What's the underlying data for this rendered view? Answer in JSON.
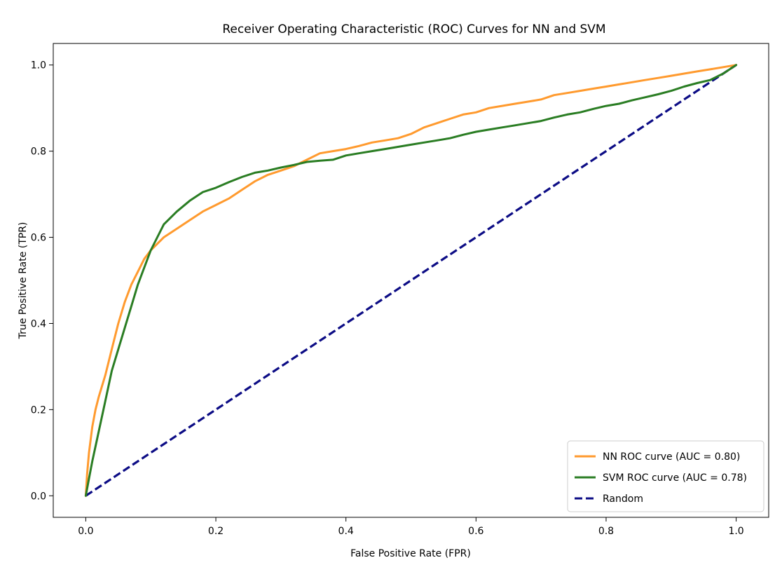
{
  "chart_data": {
    "type": "line",
    "title": "Receiver Operating Characteristic (ROC) Curves for NN and SVM",
    "xlabel": "False Positive Rate (FPR)",
    "ylabel": "True Positive Rate (TPR)",
    "xlim": [
      -0.05,
      1.05
    ],
    "ylim": [
      -0.05,
      1.05
    ],
    "xticks": [
      0.0,
      0.2,
      0.4,
      0.6,
      0.8,
      1.0
    ],
    "yticks": [
      0.0,
      0.2,
      0.4,
      0.6,
      0.8,
      1.0
    ],
    "xtick_labels": [
      "0.0",
      "0.2",
      "0.4",
      "0.6",
      "0.8",
      "1.0"
    ],
    "ytick_labels": [
      "0.0",
      "0.2",
      "0.4",
      "0.6",
      "0.8",
      "1.0"
    ],
    "grid": false,
    "legend_position": "bottom-right",
    "series": [
      {
        "name": "NN ROC curve (AUC = 0.80)",
        "color": "#ff9a2e",
        "style": "solid",
        "x": [
          0.0,
          0.002,
          0.005,
          0.01,
          0.015,
          0.02,
          0.03,
          0.04,
          0.05,
          0.06,
          0.07,
          0.08,
          0.09,
          0.1,
          0.12,
          0.14,
          0.16,
          0.18,
          0.2,
          0.22,
          0.24,
          0.26,
          0.28,
          0.3,
          0.32,
          0.34,
          0.36,
          0.38,
          0.4,
          0.42,
          0.44,
          0.46,
          0.48,
          0.5,
          0.52,
          0.54,
          0.56,
          0.58,
          0.6,
          0.62,
          0.64,
          0.66,
          0.68,
          0.7,
          0.72,
          0.74,
          0.76,
          0.78,
          0.8,
          0.82,
          0.84,
          0.86,
          0.88,
          0.9,
          0.92,
          0.94,
          0.96,
          0.98,
          1.0
        ],
        "y": [
          0.0,
          0.05,
          0.1,
          0.16,
          0.2,
          0.23,
          0.28,
          0.34,
          0.4,
          0.45,
          0.49,
          0.52,
          0.55,
          0.57,
          0.6,
          0.62,
          0.64,
          0.66,
          0.675,
          0.69,
          0.71,
          0.73,
          0.745,
          0.755,
          0.765,
          0.78,
          0.795,
          0.8,
          0.805,
          0.812,
          0.82,
          0.825,
          0.83,
          0.84,
          0.855,
          0.865,
          0.875,
          0.885,
          0.89,
          0.9,
          0.905,
          0.91,
          0.915,
          0.92,
          0.93,
          0.935,
          0.94,
          0.945,
          0.95,
          0.955,
          0.96,
          0.965,
          0.97,
          0.975,
          0.98,
          0.985,
          0.99,
          0.995,
          1.0
        ]
      },
      {
        "name": "SVM ROC curve (AUC = 0.78)",
        "color": "#2a7d23",
        "style": "solid",
        "x": [
          0.0,
          0.005,
          0.01,
          0.02,
          0.03,
          0.04,
          0.05,
          0.06,
          0.07,
          0.08,
          0.09,
          0.1,
          0.11,
          0.12,
          0.14,
          0.16,
          0.18,
          0.2,
          0.22,
          0.24,
          0.26,
          0.28,
          0.3,
          0.32,
          0.34,
          0.36,
          0.38,
          0.4,
          0.42,
          0.44,
          0.46,
          0.48,
          0.5,
          0.52,
          0.54,
          0.56,
          0.58,
          0.6,
          0.62,
          0.64,
          0.66,
          0.68,
          0.7,
          0.72,
          0.74,
          0.76,
          0.78,
          0.8,
          0.82,
          0.84,
          0.86,
          0.88,
          0.9,
          0.92,
          0.94,
          0.96,
          0.98,
          1.0
        ],
        "y": [
          0.0,
          0.04,
          0.08,
          0.15,
          0.22,
          0.29,
          0.34,
          0.39,
          0.44,
          0.49,
          0.53,
          0.57,
          0.6,
          0.63,
          0.66,
          0.685,
          0.705,
          0.715,
          0.728,
          0.74,
          0.75,
          0.755,
          0.762,
          0.768,
          0.775,
          0.778,
          0.78,
          0.79,
          0.795,
          0.8,
          0.805,
          0.81,
          0.815,
          0.82,
          0.825,
          0.83,
          0.838,
          0.845,
          0.85,
          0.855,
          0.86,
          0.865,
          0.87,
          0.878,
          0.885,
          0.89,
          0.898,
          0.905,
          0.91,
          0.918,
          0.925,
          0.932,
          0.94,
          0.95,
          0.958,
          0.965,
          0.98,
          1.0
        ]
      },
      {
        "name": "Random",
        "color": "#0c0c85",
        "style": "dashed",
        "x": [
          0.0,
          1.0
        ],
        "y": [
          0.0,
          1.0
        ]
      }
    ]
  }
}
